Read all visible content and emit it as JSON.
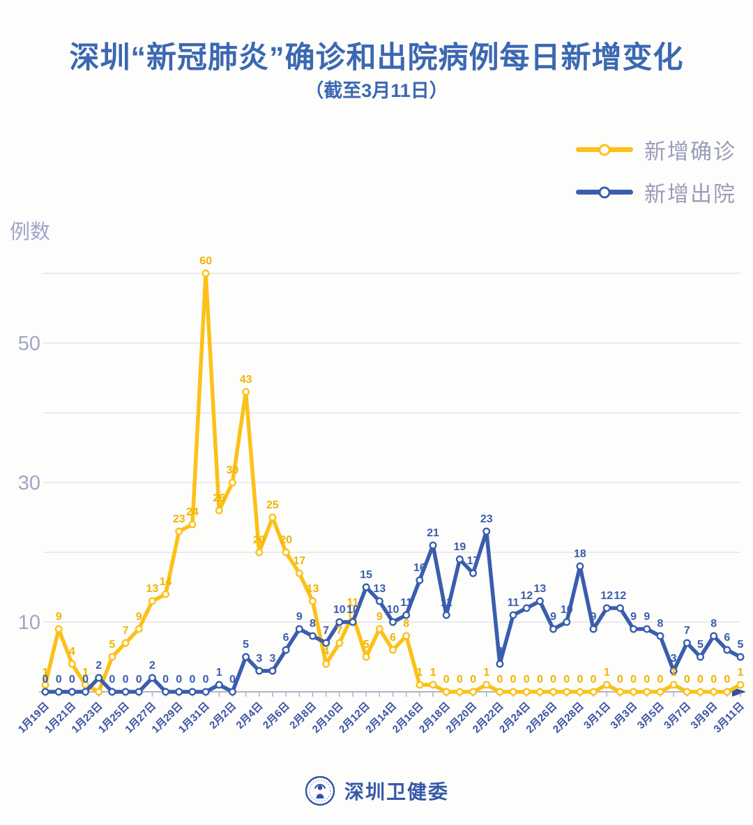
{
  "title": "深圳“新冠肺炎”确诊和出院病例每日新增变化",
  "subtitle": "（截至3月11日）",
  "legend": [
    {
      "label": "新增确诊",
      "color": "#fcc118"
    },
    {
      "label": "新增出院",
      "color": "#3a5dad"
    }
  ],
  "footer": {
    "org_name": "深圳卫健委"
  },
  "colors": {
    "title_blue": "#3b68b1",
    "confirmed_yellow": "#fcc118",
    "discharged_blue": "#3a5dad",
    "axis_text_purple": "#a2a5c8",
    "date_text_blue": "#3c50a2"
  },
  "chart_data": {
    "type": "line",
    "title": "深圳“新冠肺炎”确诊和出院病例每日新增变化",
    "subtitle": "（截至3月11日）",
    "ylabel": "例数",
    "xlabel": "",
    "ylim": [
      0,
      60
    ],
    "grid": true,
    "y_gridline_step": 10,
    "y_ticks_labeled": [
      10,
      30,
      50
    ],
    "x_tick_every": 2,
    "legend_position": "top-right",
    "categories": [
      "1月19日",
      "1月20日",
      "1月21日",
      "1月22日",
      "1月23日",
      "1月24日",
      "1月25日",
      "1月26日",
      "1月27日",
      "1月28日",
      "1月29日",
      "1月30日",
      "1月31日",
      "2月1日",
      "2月2日",
      "2月3日",
      "2月4日",
      "2月5日",
      "2月6日",
      "2月7日",
      "2月8日",
      "2月9日",
      "2月10日",
      "2月11日",
      "2月12日",
      "2月13日",
      "2月14日",
      "2月15日",
      "2月16日",
      "2月17日",
      "2月18日",
      "2月19日",
      "2月20日",
      "2月21日",
      "2月22日",
      "2月23日",
      "2月24日",
      "2月25日",
      "2月26日",
      "2月27日",
      "2月28日",
      "2月29日",
      "3月1日",
      "3月2日",
      "3月3日",
      "3月4日",
      "3月5日",
      "3月6日",
      "3月7日",
      "3月8日",
      "3月9日",
      "3月10日",
      "3月11日"
    ],
    "series": [
      {
        "name": "新增确诊",
        "color": "#fcc118",
        "label_color": "#f0b400",
        "values": [
          1,
          9,
          4,
          1,
          0,
          5,
          7,
          9,
          13,
          14,
          23,
          24,
          60,
          26,
          30,
          43,
          20,
          25,
          20,
          17,
          13,
          4,
          7,
          11,
          5,
          9,
          6,
          8,
          1,
          1,
          0,
          0,
          0,
          1,
          0,
          0,
          0,
          0,
          0,
          0,
          0,
          0,
          1,
          0,
          0,
          0,
          0,
          1,
          0,
          0,
          0,
          0,
          1
        ]
      },
      {
        "name": "新增出院",
        "color": "#3a5dad",
        "label_color": "#3a5dad",
        "values": [
          0,
          0,
          0,
          0,
          2,
          0,
          0,
          0,
          2,
          0,
          0,
          0,
          0,
          1,
          0,
          5,
          3,
          3,
          6,
          9,
          8,
          7,
          10,
          10,
          15,
          13,
          10,
          11,
          16,
          21,
          11,
          19,
          17,
          23,
          4,
          11,
          12,
          13,
          9,
          10,
          18,
          9,
          12,
          12,
          9,
          9,
          8,
          3,
          7,
          5,
          8,
          6,
          5
        ]
      }
    ]
  }
}
